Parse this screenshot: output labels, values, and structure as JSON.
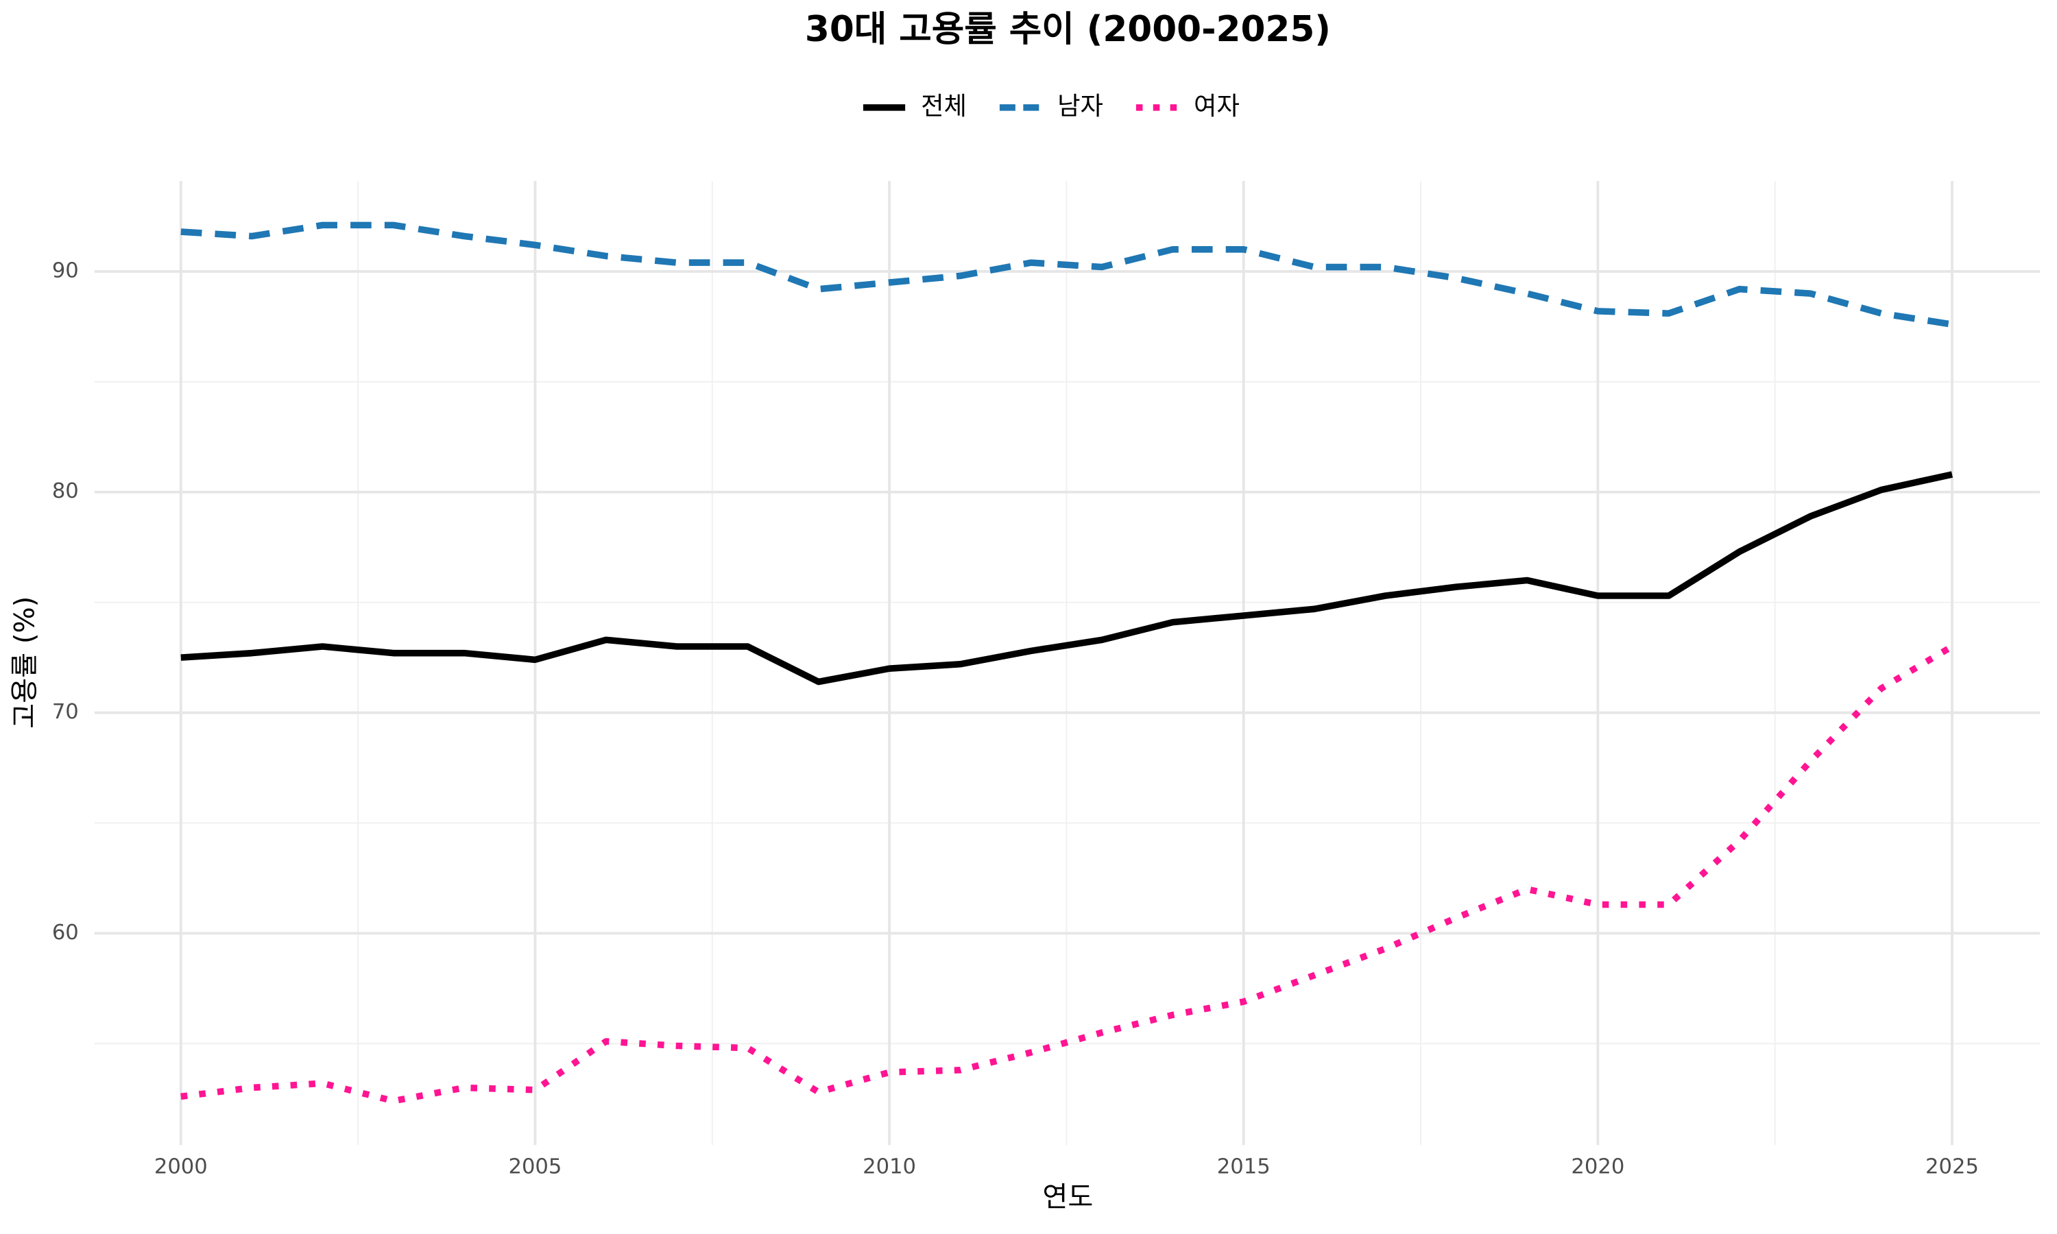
{
  "chart_data": {
    "type": "line",
    "title": "30대 고용률 추이 (2000-2025)",
    "x_label": "연도",
    "y_label": "고용률 (%)",
    "x": [
      2000,
      2001,
      2002,
      2003,
      2004,
      2005,
      2006,
      2007,
      2008,
      2009,
      2010,
      2011,
      2012,
      2013,
      2014,
      2015,
      2016,
      2017,
      2018,
      2019,
      2020,
      2021,
      2022,
      2023,
      2024,
      2025
    ],
    "series": [
      {
        "name": "전체",
        "color": "#000000",
        "dash": "solid",
        "values": [
          72.5,
          72.7,
          73.0,
          72.7,
          72.7,
          72.4,
          73.3,
          73.0,
          73.0,
          71.4,
          72.0,
          72.2,
          72.8,
          73.3,
          74.1,
          74.4,
          74.7,
          75.3,
          75.7,
          76.0,
          75.3,
          75.3,
          77.3,
          78.9,
          80.1,
          80.8
        ]
      },
      {
        "name": "남자",
        "color": "#1f77b4",
        "dash": "dashed",
        "values": [
          91.8,
          91.6,
          92.1,
          92.1,
          91.6,
          91.2,
          90.7,
          90.4,
          90.4,
          89.2,
          89.5,
          89.8,
          90.4,
          90.2,
          91.0,
          91.0,
          90.2,
          90.2,
          89.7,
          89.0,
          88.2,
          88.1,
          89.2,
          89.0,
          88.1,
          87.6
        ]
      },
      {
        "name": "여자",
        "color": "#ff1493",
        "dash": "dotted",
        "values": [
          52.6,
          53.0,
          53.2,
          52.4,
          53.0,
          52.9,
          55.1,
          54.9,
          54.8,
          52.8,
          53.7,
          53.8,
          54.6,
          55.5,
          56.3,
          56.9,
          58.1,
          59.3,
          60.7,
          62.0,
          61.3,
          61.3,
          64.2,
          67.8,
          71.1,
          73.0
        ]
      }
    ],
    "xlim": [
      1998.78,
      2026.24
    ],
    "xticks": [
      2000,
      2005,
      2010,
      2015,
      2020,
      2025
    ],
    "xminor": [
      2002.5,
      2007.5,
      2012.5,
      2017.5,
      2022.5
    ],
    "ylim": [
      50.4,
      94.1
    ],
    "yticks": [
      60,
      70,
      80,
      90
    ],
    "yminor": [
      55,
      65,
      75,
      85
    ],
    "grid": true,
    "legend": "top"
  }
}
